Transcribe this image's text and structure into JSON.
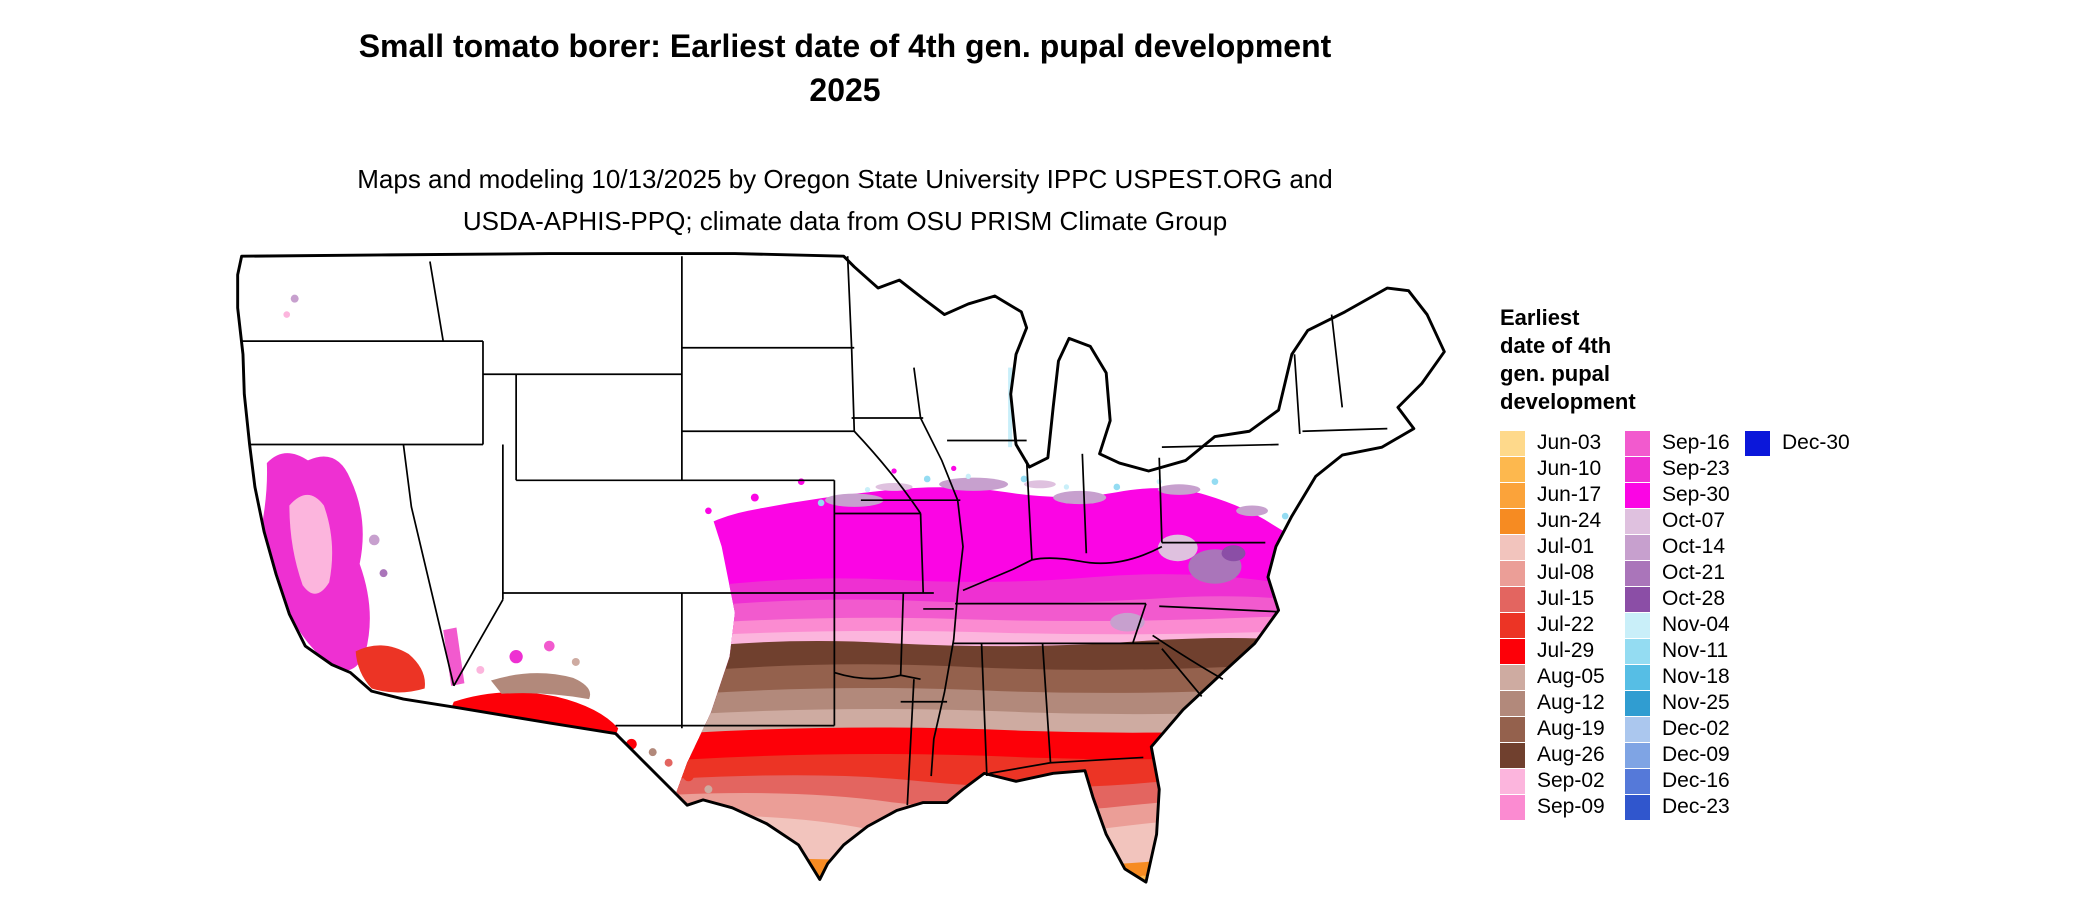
{
  "title": {
    "line1": "Small tomato borer: Earliest date of 4th gen. pupal development",
    "line2": "2025"
  },
  "subtitle": {
    "line1": "Maps and modeling 10/13/2025 by Oregon State University IPPC USPEST.ORG and",
    "line2": "USDA-APHIS-PPQ; climate data from OSU PRISM Climate Group"
  },
  "legend": {
    "title_lines": [
      "Earliest",
      "date of 4th",
      "gen. pupal",
      "development"
    ],
    "columns": [
      [
        {
          "label": "Jun-03",
          "color": "#fed98b"
        },
        {
          "label": "Jun-10",
          "color": "#fdb84e"
        },
        {
          "label": "Jun-17",
          "color": "#fba33a"
        },
        {
          "label": "Jun-24",
          "color": "#f68b22"
        },
        {
          "label": "Jul-01",
          "color": "#f2c4bd"
        },
        {
          "label": "Jul-08",
          "color": "#eb9e97"
        },
        {
          "label": "Jul-15",
          "color": "#e36560"
        },
        {
          "label": "Jul-22",
          "color": "#ec3425"
        },
        {
          "label": "Jul-29",
          "color": "#fd0008"
        },
        {
          "label": "Aug-05",
          "color": "#ceaba1"
        },
        {
          "label": "Aug-12",
          "color": "#b2897b"
        },
        {
          "label": "Aug-19",
          "color": "#94614d"
        },
        {
          "label": "Aug-26",
          "color": "#70402e"
        },
        {
          "label": "Sep-02",
          "color": "#fcb5dd"
        },
        {
          "label": "Sep-09",
          "color": "#fb8bd1"
        }
      ],
      [
        {
          "label": "Sep-16",
          "color": "#f25ace"
        },
        {
          "label": "Sep-23",
          "color": "#ee30d2"
        },
        {
          "label": "Sep-30",
          "color": "#fb05e4"
        },
        {
          "label": "Oct-07",
          "color": "#dfc1df"
        },
        {
          "label": "Oct-14",
          "color": "#c7a0ce"
        },
        {
          "label": "Oct-21",
          "color": "#aa75ba"
        },
        {
          "label": "Oct-28",
          "color": "#8b4ea6"
        },
        {
          "label": "Nov-04",
          "color": "#c9eff9"
        },
        {
          "label": "Nov-11",
          "color": "#94dcf2"
        },
        {
          "label": "Nov-18",
          "color": "#56bee5"
        },
        {
          "label": "Nov-25",
          "color": "#309dd1"
        },
        {
          "label": "Dec-02",
          "color": "#abc7ee"
        },
        {
          "label": "Dec-09",
          "color": "#7fa4e4"
        },
        {
          "label": "Dec-16",
          "color": "#5579d9"
        },
        {
          "label": "Dec-23",
          "color": "#3056cd"
        }
      ],
      [
        {
          "label": "Dec-30",
          "color": "#0b17da"
        }
      ]
    ]
  },
  "map": {
    "land_color": "#ffffff",
    "border_color": "#000000",
    "bands_north_to_south": [
      "Sep-30",
      "Sep-23",
      "Sep-16",
      "Sep-09",
      "Sep-02",
      "Aug-26",
      "Aug-19",
      "Aug-12",
      "Aug-05",
      "Jul-29",
      "Jul-22",
      "Jul-15",
      "Jul-08",
      "Jul-01",
      "Jun-24"
    ]
  }
}
